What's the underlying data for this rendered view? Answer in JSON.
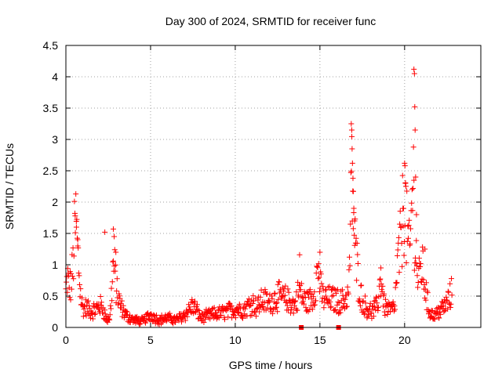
{
  "chart_data": {
    "type": "scatter",
    "title": "Day 300 of 2024, SRMTID for receiver func",
    "xlabel": "GPS time / hours",
    "ylabel": "SRMTID / TECUs",
    "xlim": [
      0,
      24.5
    ],
    "ylim": [
      0,
      4.5
    ],
    "xticks": [
      0,
      5,
      10,
      15,
      20
    ],
    "xtick_labels": [
      "0",
      "5",
      "10",
      "15",
      "20"
    ],
    "yticks": [
      0,
      0.5,
      1,
      1.5,
      2,
      2.5,
      3,
      3.5,
      4,
      4.5
    ],
    "ytick_labels": [
      "0",
      "0.5",
      "1",
      "1.5",
      "2",
      "2.5",
      "3",
      "3.5",
      "4",
      "4.5"
    ],
    "grid": true,
    "marker": "plus",
    "color": "#ff0000",
    "profile": [
      [
        0.0,
        0.55
      ],
      [
        0.1,
        0.8
      ],
      [
        0.2,
        0.6
      ],
      [
        0.3,
        0.7
      ],
      [
        0.4,
        0.9
      ],
      [
        0.5,
        1.4
      ],
      [
        0.6,
        1.7
      ],
      [
        0.7,
        1.2
      ],
      [
        0.8,
        0.8
      ],
      [
        0.9,
        0.45
      ],
      [
        1.0,
        0.3
      ],
      [
        1.2,
        0.32
      ],
      [
        1.5,
        0.25
      ],
      [
        1.8,
        0.3
      ],
      [
        2.0,
        0.35
      ],
      [
        2.2,
        0.3
      ],
      [
        2.4,
        0.12
      ],
      [
        2.6,
        0.15
      ],
      [
        2.8,
        1.0
      ],
      [
        2.9,
        0.85
      ],
      [
        3.0,
        0.6
      ],
      [
        3.1,
        0.45
      ],
      [
        3.3,
        0.3
      ],
      [
        3.6,
        0.18
      ],
      [
        4.0,
        0.12
      ],
      [
        4.5,
        0.1
      ],
      [
        5.0,
        0.2
      ],
      [
        5.5,
        0.12
      ],
      [
        6.0,
        0.15
      ],
      [
        6.5,
        0.12
      ],
      [
        7.0,
        0.2
      ],
      [
        7.5,
        0.35
      ],
      [
        8.0,
        0.15
      ],
      [
        8.5,
        0.2
      ],
      [
        9.0,
        0.22
      ],
      [
        9.5,
        0.25
      ],
      [
        10.0,
        0.3
      ],
      [
        10.5,
        0.28
      ],
      [
        11.0,
        0.4
      ],
      [
        11.3,
        0.32
      ],
      [
        11.6,
        0.45
      ],
      [
        12.0,
        0.38
      ],
      [
        12.5,
        0.5
      ],
      [
        13.0,
        0.45
      ],
      [
        13.5,
        0.35
      ],
      [
        13.8,
        0.6
      ],
      [
        14.0,
        0.45
      ],
      [
        14.3,
        0.4
      ],
      [
        14.6,
        0.5
      ],
      [
        14.9,
        0.95
      ],
      [
        15.1,
        0.5
      ],
      [
        15.4,
        0.45
      ],
      [
        15.8,
        0.45
      ],
      [
        16.2,
        0.4
      ],
      [
        16.5,
        0.45
      ],
      [
        16.7,
        0.55
      ],
      [
        16.9,
        2.5
      ],
      [
        17.0,
        1.6
      ],
      [
        17.1,
        1.2
      ],
      [
        17.3,
        0.7
      ],
      [
        17.5,
        0.4
      ],
      [
        17.8,
        0.3
      ],
      [
        18.1,
        0.25
      ],
      [
        18.4,
        0.35
      ],
      [
        18.6,
        0.8
      ],
      [
        18.8,
        0.35
      ],
      [
        19.1,
        0.28
      ],
      [
        19.4,
        0.3
      ],
      [
        19.6,
        1.0
      ],
      [
        19.8,
        1.4
      ],
      [
        20.0,
        2.2
      ],
      [
        20.1,
        1.6
      ],
      [
        20.3,
        1.1
      ],
      [
        20.5,
        2.5
      ],
      [
        20.6,
        1.5
      ],
      [
        20.8,
        0.7
      ],
      [
        21.0,
        1.0
      ],
      [
        21.2,
        0.7
      ],
      [
        21.4,
        0.3
      ],
      [
        21.7,
        0.18
      ],
      [
        22.0,
        0.25
      ],
      [
        22.3,
        0.32
      ],
      [
        22.5,
        0.38
      ],
      [
        22.7,
        0.5
      ],
      [
        22.8,
        0.55
      ]
    ],
    "spikes": [
      [
        0.55,
        1.78
      ],
      [
        0.62,
        1.6
      ],
      [
        0.7,
        1.3
      ],
      [
        2.3,
        1.52
      ],
      [
        2.8,
        1.57
      ],
      [
        2.85,
        1.45
      ],
      [
        2.95,
        1.2
      ],
      [
        13.8,
        1.16
      ],
      [
        15.0,
        1.2
      ],
      [
        16.85,
        3.25
      ],
      [
        16.88,
        3.15
      ],
      [
        16.9,
        2.85
      ],
      [
        16.92,
        2.62
      ],
      [
        16.95,
        2.38
      ],
      [
        16.97,
        2.17
      ],
      [
        17.0,
        1.9
      ],
      [
        17.05,
        1.7
      ],
      [
        18.6,
        0.95
      ],
      [
        19.9,
        1.9
      ],
      [
        20.0,
        2.62
      ],
      [
        20.02,
        2.58
      ],
      [
        20.05,
        2.3
      ],
      [
        20.55,
        4.12
      ],
      [
        20.58,
        4.05
      ],
      [
        20.6,
        3.52
      ],
      [
        20.62,
        3.15
      ],
      [
        20.65,
        2.4
      ],
      [
        20.7,
        1.8
      ],
      [
        21.2,
        1.25
      ]
    ],
    "outliers": [
      [
        13.9,
        0.0
      ],
      [
        16.1,
        0.0
      ]
    ]
  }
}
